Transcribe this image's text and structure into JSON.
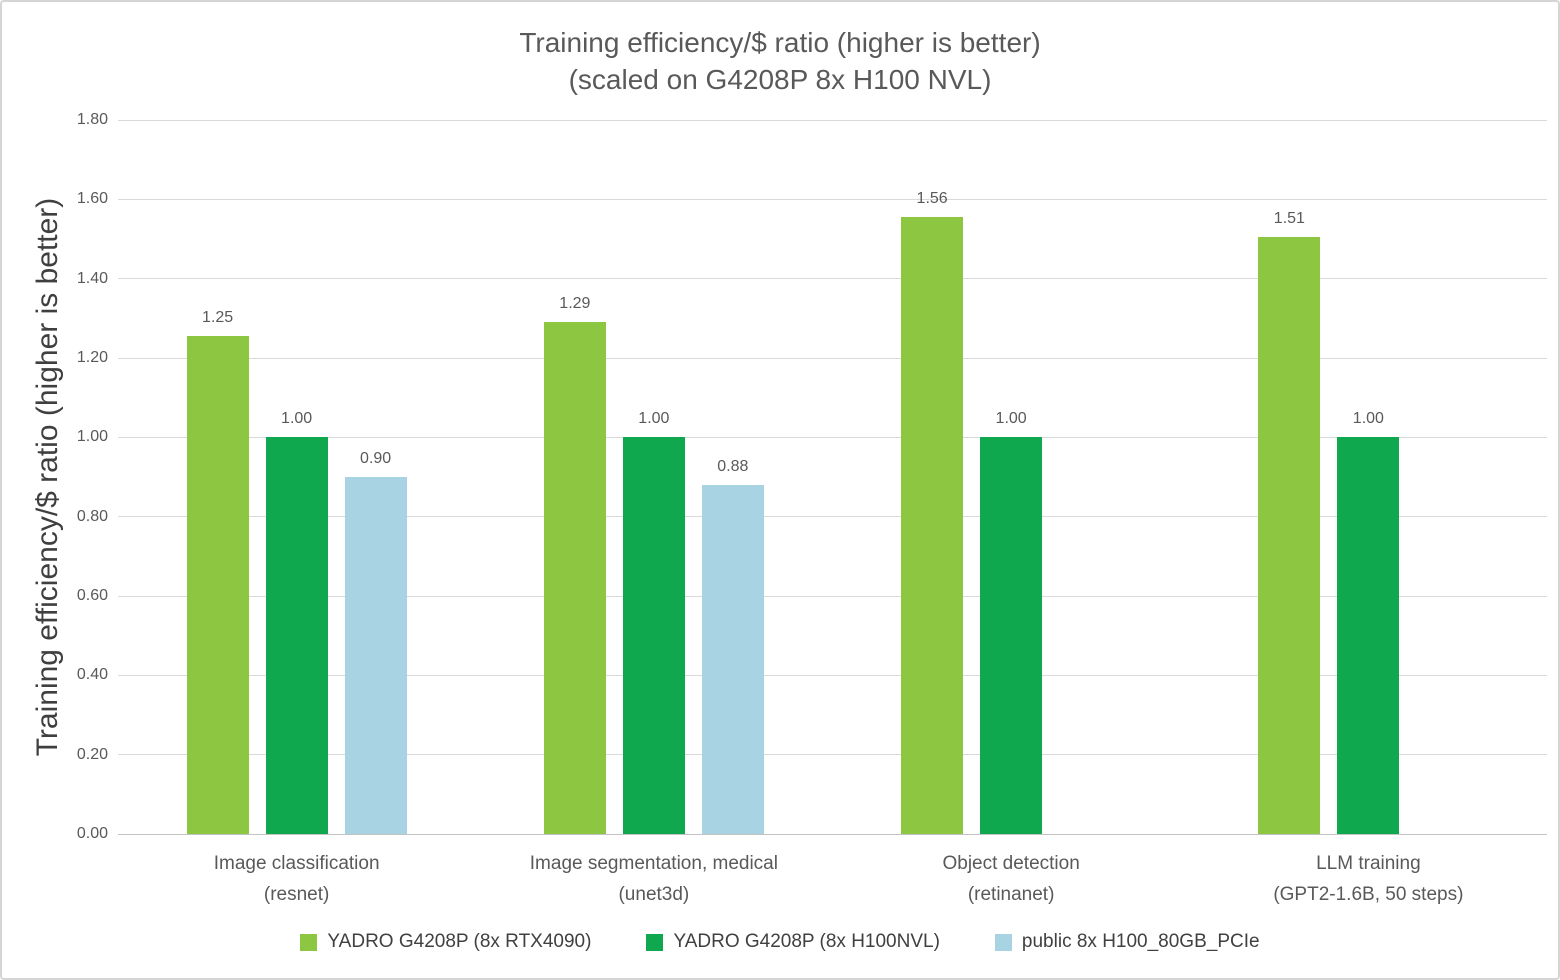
{
  "chart_data": {
    "type": "bar",
    "title": "Training efficiency/$ ratio (higher is better)",
    "subtitle": "(scaled on G4208P 8x H100 NVL)",
    "ylabel": "Training efficiency/$ ratio (higher is better)",
    "xlabel": "",
    "ylim": [
      0,
      1.8
    ],
    "ytick_step": 0.2,
    "yticks": [
      "0.00",
      "0.20",
      "0.40",
      "0.60",
      "0.80",
      "1.00",
      "1.20",
      "1.40",
      "1.60",
      "1.80"
    ],
    "grid": true,
    "legend_position": "bottom",
    "categories": [
      "Image classification\n(resnet)",
      "Image segmentation, medical\n(unet3d)",
      "Object detection\n(retinanet)",
      "LLM training\n(GPT2-1.6B, 50 steps)"
    ],
    "series": [
      {
        "name": "YADRO G4208P (8x RTX4090)",
        "color": "#8dc742",
        "values": [
          1.255,
          1.29,
          1.555,
          1.505
        ],
        "labels": [
          "1.25",
          "1.29",
          "1.56",
          "1.51"
        ]
      },
      {
        "name": "YADRO G4208P (8x H100NVL)",
        "color": "#0fa84e",
        "values": [
          1.0,
          1.0,
          1.0,
          1.0
        ],
        "labels": [
          "1.00",
          "1.00",
          "1.00",
          "1.00"
        ]
      },
      {
        "name": "public 8x H100_80GB_PCIe",
        "color": "#a8d3e2",
        "values": [
          0.9,
          0.88,
          null,
          null
        ],
        "labels": [
          "0.90",
          "0.88",
          null,
          null
        ]
      }
    ]
  },
  "colors": {
    "title_text": "#595959",
    "axis_text": "#595959",
    "ylabel_text": "#3f3f3f",
    "legend_text": "#404040",
    "gridline": "#d9d9d9",
    "background": "#ffffff"
  }
}
